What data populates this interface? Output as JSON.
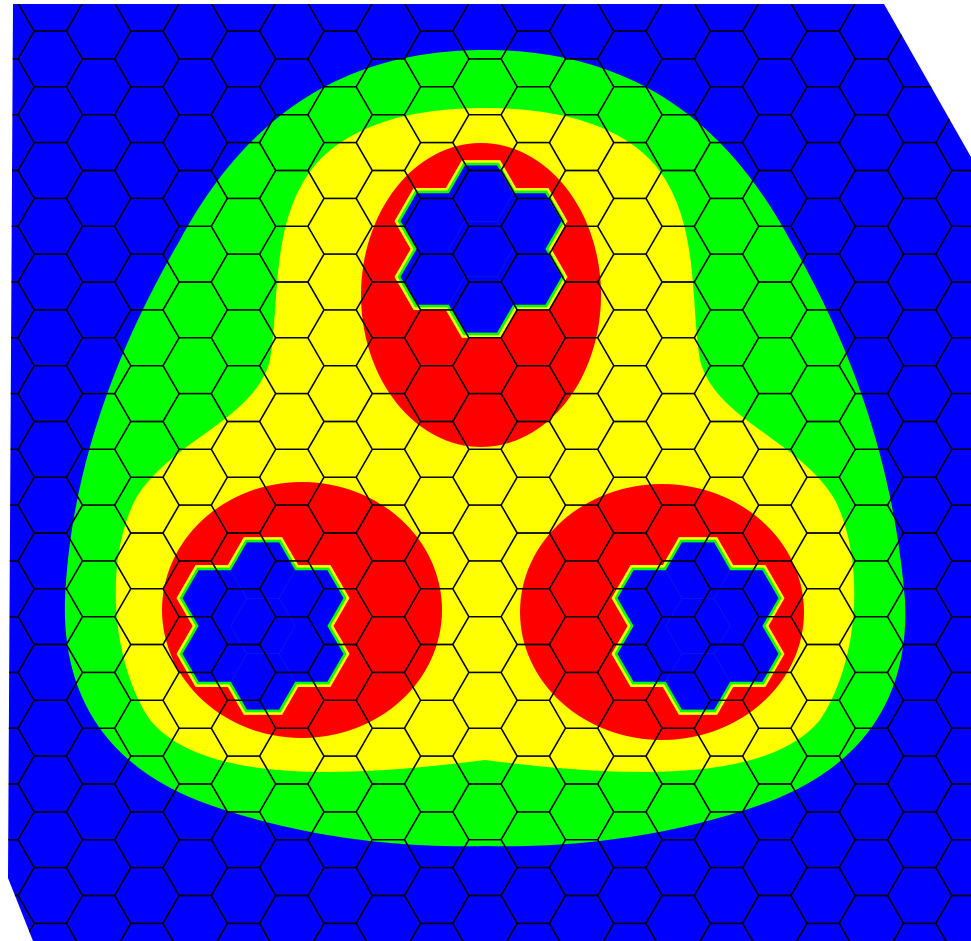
{
  "figure": {
    "type": "hexagonal-lattice-contour-map",
    "hex_grid": {
      "shape": "flat-top hexagons",
      "line_color": "#000000"
    },
    "levels": [
      {
        "name": "level-1",
        "color": "#0000ff"
      },
      {
        "name": "level-2",
        "color": "#00ff00"
      },
      {
        "name": "level-3",
        "color": "#ffff00"
      },
      {
        "name": "level-4",
        "color": "#ff0000"
      }
    ],
    "lobe_count": 3,
    "hole_shape": "seven-hexagon cluster",
    "hole_rim_colors": [
      "#00ff00",
      "#ffff00",
      "#ff0000"
    ]
  }
}
